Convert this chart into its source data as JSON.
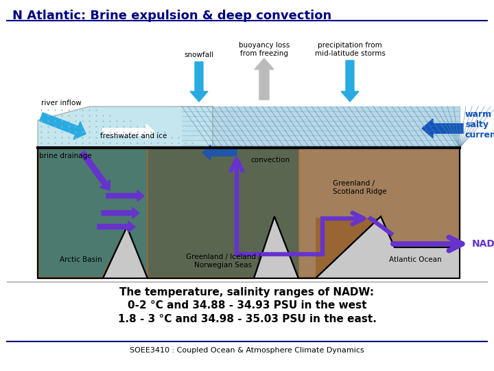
{
  "title": "N Atlantic: Brine expulsion & deep convection",
  "title_color": "#000080",
  "title_fontsize": 13,
  "bg_color": "#ffffff",
  "text_line1": "The temperature, salinity ranges of NADW:",
  "text_line2": "0-2 °C and 34.88 - 34.93 PSU in the west",
  "text_line3": "1.8 - 3 °C and 34.98 - 35.03 PSU in the east.",
  "footer": "SOEE3410 : Coupled Ocean & Atmosphere Climate Dynamics",
  "label_snowfall": "snowfall",
  "label_buoyancy": "buoyancy loss\nfrom freezing",
  "label_precip": "precipitation from\nmid-latitude storms",
  "label_river": "river inflow",
  "label_freshwater": "freshwater and ice",
  "label_brine": "brine drainage",
  "label_convection": "convection",
  "label_greenland_ridge": "Greenland /\nScotland Ridge",
  "label_arctic": "Arctic Basin",
  "label_greenland_seas": "Greenland / Iceland /\nNorwegian Seas",
  "label_atlantic": "Atlantic Ocean",
  "label_nadw": "NADW",
  "label_warm": "warm\nsalty\ncurrent",
  "cyan_color": "#29ABE2",
  "gray_arrow_color": "#BBBBBB",
  "dark_blue_color": "#000080",
  "navy_arrow": "#003399",
  "purple_color": "#6633CC",
  "brown_color": "#996633",
  "teal_color": "#339999",
  "ice_color": "#C8E8F0",
  "ocean_surf_color": "#B8D8E8",
  "gray_bg": "#C8C8C8",
  "text1_fontsize": 11,
  "text2_fontsize": 11,
  "text3_fontsize": 11,
  "footer_fontsize": 8
}
